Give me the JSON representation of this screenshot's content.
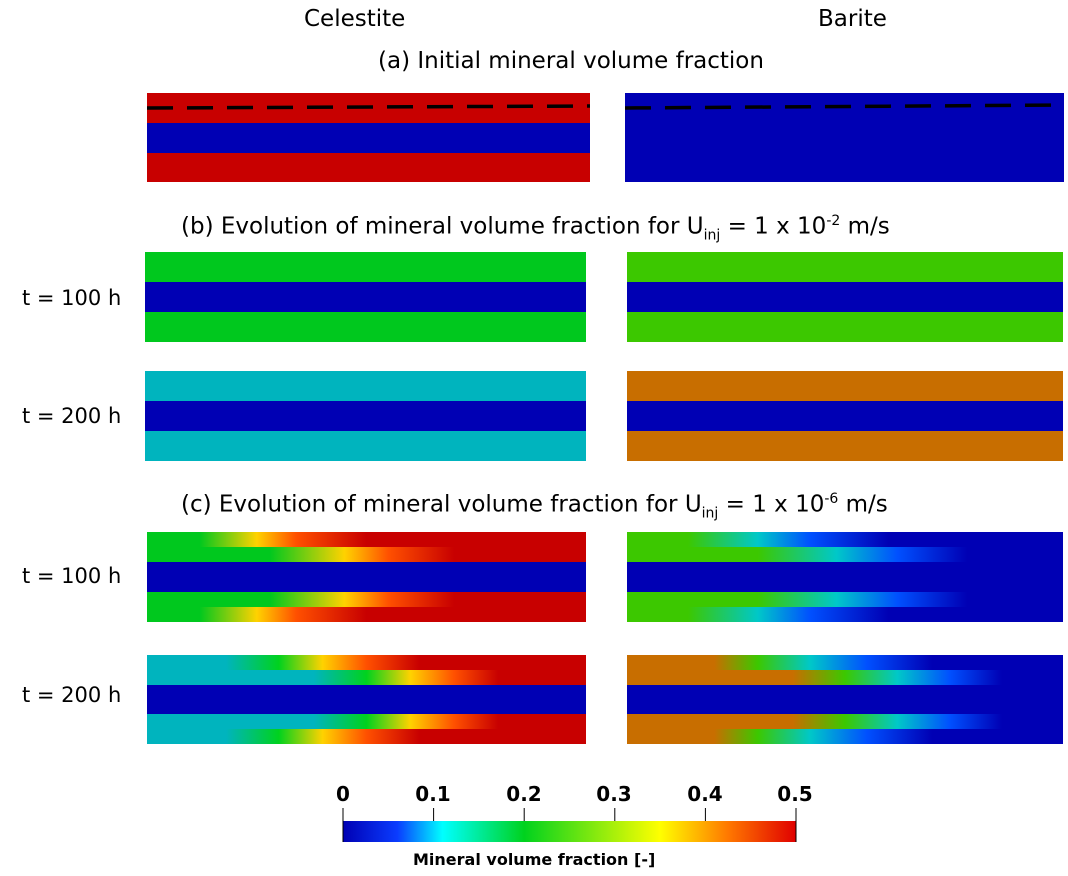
{
  "columns": {
    "left": "Celestite",
    "right": "Barite"
  },
  "sections": {
    "a": {
      "title": "(a) Initial mineral volume fraction"
    },
    "b": {
      "prefix": "(b) Evolution of mineral volume fraction for U",
      "sub": "inj",
      "mid": " = 1 x 10",
      "sup": "-2",
      "suffix": " m/s"
    },
    "c": {
      "prefix": "(c) Evolution of mineral volume fraction for U",
      "sub": "inj",
      "mid": " = 1 x 10",
      "sup": "-6",
      "suffix": " m/s"
    }
  },
  "time_labels": {
    "t100": "t = 100 h",
    "t200": "t = 200 h"
  },
  "colorbar": {
    "title": "Mineral volume fraction [-]",
    "ticks": [
      "0",
      "0.1",
      "0.2",
      "0.3",
      "0.4",
      "0.5"
    ],
    "range": [
      0,
      0.5
    ],
    "colors": [
      "#0000b3",
      "#0a3cff",
      "#00ffff",
      "#00d21e",
      "#ffff00",
      "#ff7800",
      "#e00000"
    ]
  },
  "panel_values": {
    "a_celestite": {
      "outer": 0.5,
      "middle": 0.0,
      "dashed_line": true
    },
    "a_barite": {
      "outer": 0.0,
      "middle": 0.0,
      "dashed_line": true
    },
    "b_t100_celestite": {
      "outer": 0.3,
      "middle": 0.0
    },
    "b_t100_barite": {
      "outer": 0.3,
      "middle": 0.0
    },
    "b_t200_celestite": {
      "outer": 0.17,
      "middle": 0.0
    },
    "b_t200_barite": {
      "outer": 0.48,
      "middle": 0.0
    },
    "c_t100_celestite": {
      "outer_inlet": 0.3,
      "outer_outlet": 0.5,
      "middle": 0.0
    },
    "c_t100_barite": {
      "outer_inlet": 0.3,
      "outer_outlet": 0.0,
      "middle": 0.0
    },
    "c_t200_celestite": {
      "outer_inlet": 0.17,
      "outer_outlet": 0.5,
      "middle": 0.0
    },
    "c_t200_barite": {
      "outer_inlet": 0.48,
      "outer_outlet": 0.0,
      "middle": 0.0
    }
  },
  "colors": {
    "red": "#c80000",
    "blue": "#0000b4",
    "green": "#00c81e",
    "green_barite": "#3cc800",
    "cyan": "#00b4be",
    "orange": "#c86e00"
  }
}
